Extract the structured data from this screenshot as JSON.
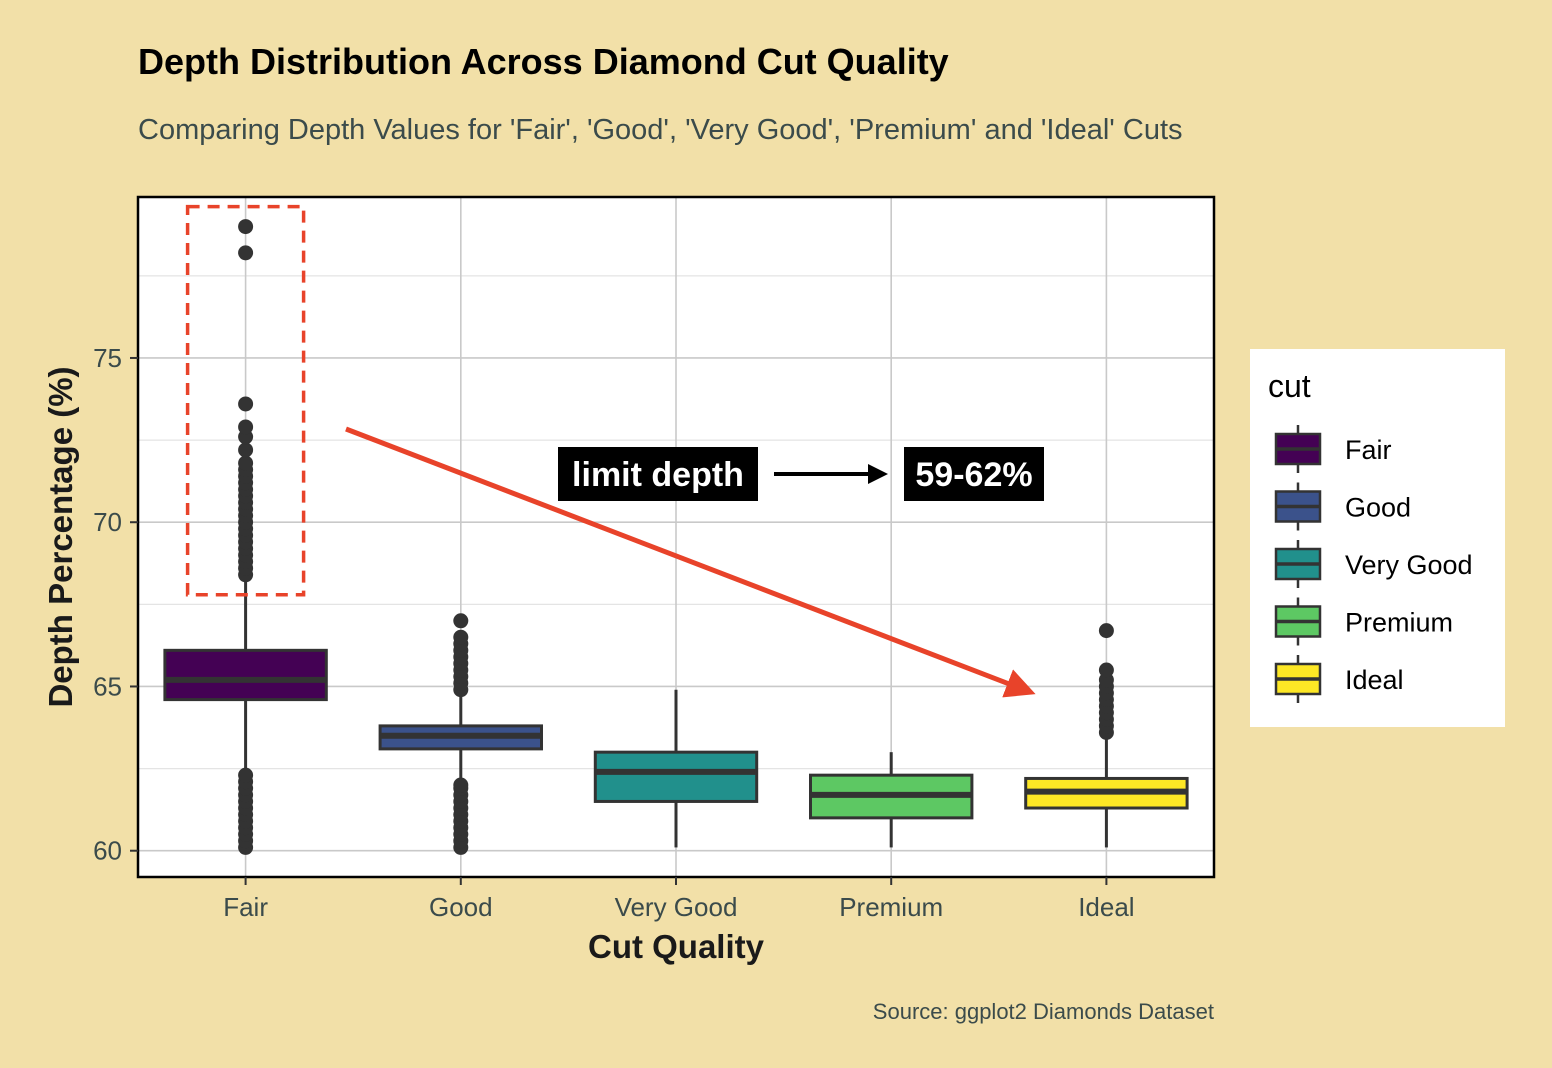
{
  "chart_data": {
    "type": "box",
    "title": "Depth Distribution Across Diamond Cut Quality",
    "subtitle": "Comparing Depth Values for 'Fair', 'Good', 'Very Good', 'Premium' and 'Ideal' Cuts",
    "xlabel": "Cut Quality",
    "ylabel": "Depth Percentage (%)",
    "caption": "Source: ggplot2 Diamonds Dataset",
    "categories": [
      "Fair",
      "Good",
      "Very Good",
      "Premium",
      "Ideal"
    ],
    "y_ticks": [
      60,
      65,
      70,
      75
    ],
    "ylim": [
      59.2,
      79.9
    ],
    "grid": true,
    "legend": {
      "title": "cut",
      "position": "right"
    },
    "boxes": [
      {
        "name": "Fair",
        "color": "#440154",
        "min": 60.1,
        "q1": 64.6,
        "median": 65.2,
        "q3": 66.1,
        "max": 68.3,
        "outliers_high": [
          68.4,
          68.6,
          68.8,
          69.0,
          69.2,
          69.4,
          69.6,
          69.8,
          70.0,
          70.2,
          70.4,
          70.6,
          70.8,
          71.0,
          71.2,
          71.4,
          71.6,
          71.8,
          72.2,
          72.6,
          72.9,
          73.6,
          78.2,
          79.0
        ],
        "outliers_low": [
          60.1,
          60.3,
          60.5,
          60.7,
          60.9,
          61.1,
          61.3,
          61.5,
          61.7,
          61.9,
          62.1,
          62.3
        ]
      },
      {
        "name": "Good",
        "color": "#3B528B",
        "min": 60.1,
        "q1": 63.1,
        "median": 63.5,
        "q3": 63.8,
        "max": 64.8,
        "outliers_high": [
          64.9,
          65.1,
          65.3,
          65.5,
          65.7,
          65.9,
          66.1,
          66.3,
          66.5,
          67.0
        ],
        "outliers_low": [
          60.1,
          60.3,
          60.5,
          60.7,
          60.9,
          61.1,
          61.3,
          61.5,
          61.7,
          61.9,
          62.0
        ]
      },
      {
        "name": "Very Good",
        "color": "#21908C",
        "min": 60.1,
        "q1": 61.5,
        "median": 62.4,
        "q3": 63.0,
        "max": 64.9,
        "outliers_high": [],
        "outliers_low": []
      },
      {
        "name": "Premium",
        "color": "#5DC863",
        "min": 60.1,
        "q1": 61.0,
        "median": 61.7,
        "q3": 62.3,
        "max": 63.0,
        "outliers_high": [],
        "outliers_low": []
      },
      {
        "name": "Ideal",
        "color": "#FDE725",
        "min": 60.1,
        "q1": 61.3,
        "median": 61.8,
        "q3": 62.2,
        "max": 63.5,
        "outliers_high": [
          63.6,
          63.8,
          64.0,
          64.2,
          64.4,
          64.6,
          64.8,
          65.0,
          65.2,
          65.5,
          66.7
        ],
        "outliers_low": []
      }
    ],
    "annotations": {
      "label_left": "limit depth",
      "label_right": "59-62%",
      "highlight_color": "#E8432A"
    }
  }
}
